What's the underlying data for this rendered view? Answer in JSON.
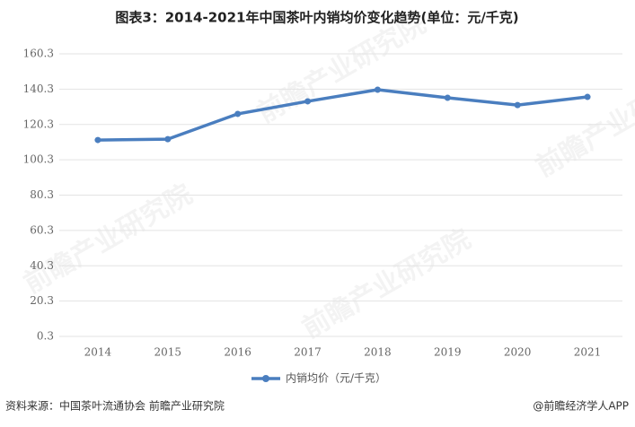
{
  "chart_data": {
    "type": "line",
    "title": "图表3：2014-2021年中国茶叶内销均价变化趋势(单位：元/千克)",
    "categories": [
      "2014",
      "2015",
      "2016",
      "2017",
      "2018",
      "2019",
      "2020",
      "2021"
    ],
    "series": [
      {
        "name": "内销均价（元/千克）",
        "color": "#4a7ebf",
        "values": [
          111.5,
          112.0,
          126.3,
          133.4,
          140.0,
          135.4,
          131.3,
          135.9
        ]
      }
    ],
    "ylim": [
      0.3,
      160.3
    ],
    "yticks": [
      0.3,
      20.3,
      40.3,
      60.3,
      80.3,
      100.3,
      120.3,
      140.3,
      160.3
    ],
    "grid": true,
    "legend": "bottom",
    "source": "资料来源：中国茶叶流通协会 前瞻产业研究院",
    "credit": "@前瞻经济学人APP",
    "watermark": "前瞻产业研究院"
  }
}
